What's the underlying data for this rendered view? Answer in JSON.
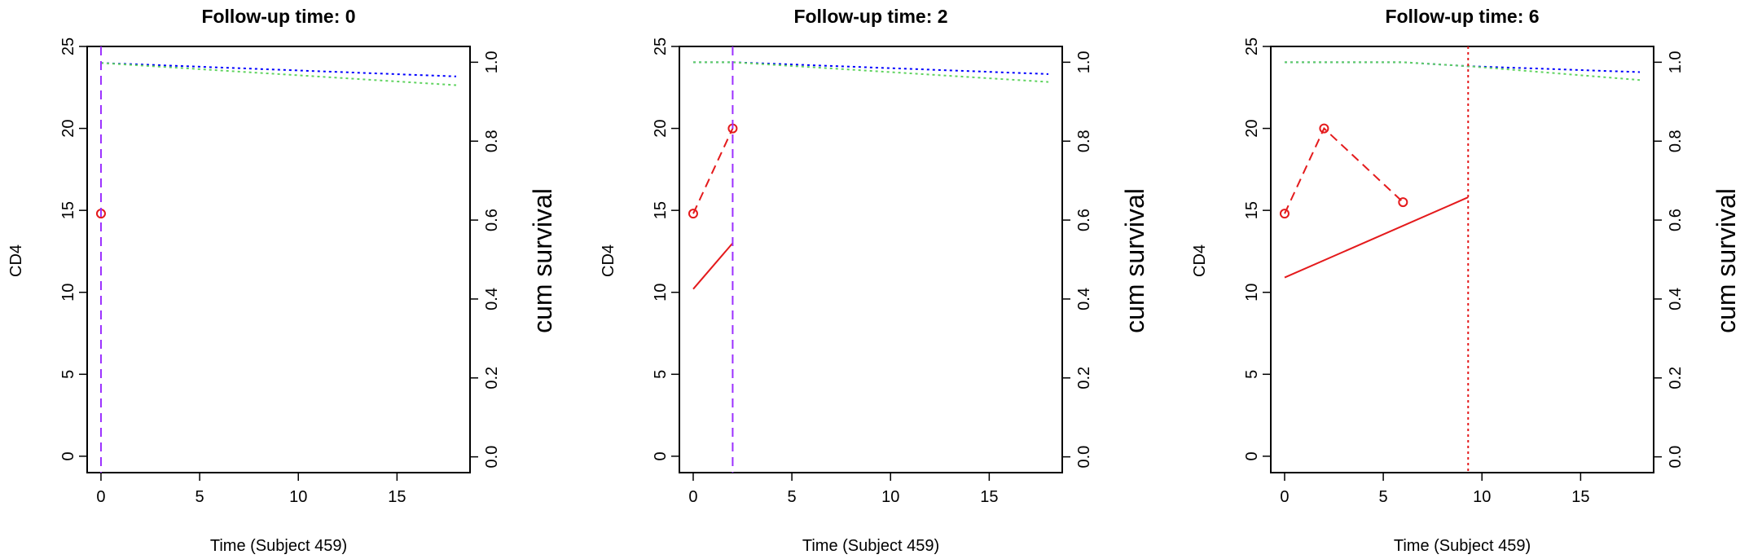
{
  "chart_data": [
    {
      "type": "line",
      "title": "Follow-up time: 0",
      "xlabel": "Time (Subject 459)",
      "ylabel": "CD4",
      "y2label": "cum survival",
      "xlim": [
        -0.7,
        18.7
      ],
      "ylim": [
        -1,
        25
      ],
      "y2lim": [
        -0.04,
        1.04
      ],
      "x_ticks": [
        "0",
        "5",
        "10",
        "15"
      ],
      "y_ticks": [
        "0",
        "5",
        "10",
        "15",
        "20",
        "25"
      ],
      "y2_ticks": [
        "0.0",
        "0.2",
        "0.4",
        "0.6",
        "0.8",
        "1.0"
      ],
      "series": [
        {
          "kind": "observed",
          "color": "#e41a1c",
          "dash": "dashed",
          "points": [
            [
              0,
              14.8
            ]
          ]
        },
        {
          "kind": "fitted",
          "color": "#e41a1c",
          "dash": "solid",
          "points": []
        },
        {
          "kind": "survival-upper",
          "color": "#0000ff",
          "dash": "dotted",
          "points": [
            [
              0,
              0.998
            ],
            [
              18,
              0.964
            ]
          ]
        },
        {
          "kind": "survival-lower",
          "color": "#5fd35f",
          "dash": "dotted",
          "points": [
            [
              0,
              0.998
            ],
            [
              18,
              0.942
            ]
          ]
        }
      ],
      "vline": {
        "x": 0,
        "color": "#9b30ff",
        "dash": "dashed"
      }
    },
    {
      "type": "line",
      "title": "Follow-up time: 2",
      "xlabel": "Time (Subject 459)",
      "ylabel": "CD4",
      "y2label": "cum survival",
      "xlim": [
        -0.7,
        18.7
      ],
      "ylim": [
        -1,
        25
      ],
      "y2lim": [
        -0.04,
        1.04
      ],
      "x_ticks": [
        "0",
        "5",
        "10",
        "15"
      ],
      "y_ticks": [
        "0",
        "5",
        "10",
        "15",
        "20",
        "25"
      ],
      "y2_ticks": [
        "0.0",
        "0.2",
        "0.4",
        "0.6",
        "0.8",
        "1.0"
      ],
      "series": [
        {
          "kind": "observed",
          "color": "#e41a1c",
          "dash": "dashed",
          "points": [
            [
              0,
              14.8
            ],
            [
              2,
              20
            ]
          ]
        },
        {
          "kind": "fitted",
          "color": "#e41a1c",
          "dash": "solid",
          "points": [
            [
              0,
              10.2
            ],
            [
              2,
              13
            ]
          ]
        },
        {
          "kind": "survival-upper",
          "color": "#0000ff",
          "dash": "dotted",
          "points": [
            [
              0,
              1.0
            ],
            [
              2,
              1.0
            ],
            [
              18,
              0.97
            ]
          ]
        },
        {
          "kind": "survival-lower",
          "color": "#5fd35f",
          "dash": "dotted",
          "points": [
            [
              0,
              1.0
            ],
            [
              2,
              1.0
            ],
            [
              18,
              0.95
            ]
          ]
        }
      ],
      "vline": {
        "x": 2,
        "color": "#9b30ff",
        "dash": "dashed"
      }
    },
    {
      "type": "line",
      "title": "Follow-up time: 6",
      "xlabel": "Time (Subject 459)",
      "ylabel": "CD4",
      "y2label": "cum survival",
      "xlim": [
        -0.7,
        18.7
      ],
      "ylim": [
        -1,
        25
      ],
      "y2lim": [
        -0.04,
        1.04
      ],
      "x_ticks": [
        "0",
        "5",
        "10",
        "15"
      ],
      "y_ticks": [
        "0",
        "5",
        "10",
        "15",
        "20",
        "25"
      ],
      "y2_ticks": [
        "0.0",
        "0.2",
        "0.4",
        "0.6",
        "0.8",
        "1.0"
      ],
      "series": [
        {
          "kind": "observed",
          "color": "#e41a1c",
          "dash": "dashed",
          "points": [
            [
              0,
              14.8
            ],
            [
              2,
              20
            ],
            [
              6,
              15.5
            ]
          ]
        },
        {
          "kind": "fitted",
          "color": "#e41a1c",
          "dash": "solid",
          "points": [
            [
              0,
              10.9
            ],
            [
              9.3,
              15.8
            ]
          ]
        },
        {
          "kind": "survival-upper",
          "color": "#0000ff",
          "dash": "dotted",
          "points": [
            [
              0,
              1.0
            ],
            [
              6,
              1.0
            ],
            [
              9.3,
              0.99
            ],
            [
              18,
              0.975
            ]
          ]
        },
        {
          "kind": "survival-lower",
          "color": "#5fd35f",
          "dash": "dotted",
          "points": [
            [
              0,
              1.0
            ],
            [
              6,
              1.0
            ],
            [
              9.3,
              0.99
            ],
            [
              18,
              0.955
            ]
          ]
        }
      ],
      "vline": {
        "x": 9.3,
        "color": "#e41a1c",
        "dash": "dotted"
      }
    }
  ]
}
